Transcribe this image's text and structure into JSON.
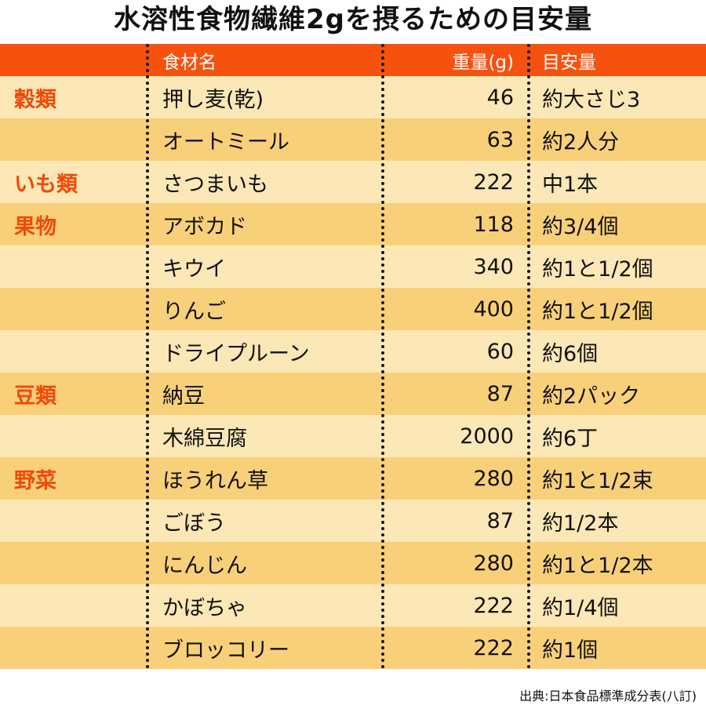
{
  "title": "水溶性食物繊維2gを摂るための目安量",
  "header": {
    "category": "",
    "name": "食材名",
    "weight": "重量(g)",
    "estimate": "目安量"
  },
  "rows": [
    {
      "category": "穀類",
      "name": "押し麦(乾)",
      "weight": "46",
      "estimate": "約大さじ3"
    },
    {
      "category": "",
      "name": "オートミール",
      "weight": "63",
      "estimate": "約2人分"
    },
    {
      "category": "いも類",
      "name": "さつまいも",
      "weight": "222",
      "estimate": "中1本"
    },
    {
      "category": "果物",
      "name": "アボカド",
      "weight": "118",
      "estimate": "約3/4個"
    },
    {
      "category": "",
      "name": "キウイ",
      "weight": "340",
      "estimate": "約1と1/2個"
    },
    {
      "category": "",
      "name": "りんご",
      "weight": "400",
      "estimate": "約1と1/2個"
    },
    {
      "category": "",
      "name": "ドライプルーン",
      "weight": "60",
      "estimate": "約6個"
    },
    {
      "category": "豆類",
      "name": "納豆",
      "weight": "87",
      "estimate": "約2パック"
    },
    {
      "category": "",
      "name": "木綿豆腐",
      "weight": "2000",
      "estimate": "約6丁"
    },
    {
      "category": "野菜",
      "name": "ほうれん草",
      "weight": "280",
      "estimate": "約1と1/2束"
    },
    {
      "category": "",
      "name": "ごぼう",
      "weight": "87",
      "estimate": "約1/2本"
    },
    {
      "category": "",
      "name": "にんじん",
      "weight": "280",
      "estimate": "約1と1/2本"
    },
    {
      "category": "",
      "name": "かぼちゃ",
      "weight": "222",
      "estimate": "約1/4個"
    },
    {
      "category": "",
      "name": "ブロッコリー",
      "weight": "222",
      "estimate": "約1個"
    }
  ],
  "source": "出典:日本食品標準成分表(八訂)",
  "colors": {
    "header_bg": "#f5520f",
    "row_light": "#fce7b6",
    "row_dark": "#f9d07a",
    "category_text": "#f04a08"
  }
}
